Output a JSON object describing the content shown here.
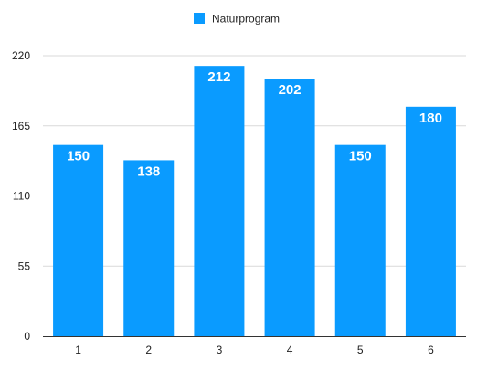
{
  "chart_data": {
    "type": "bar",
    "categories": [
      "1",
      "2",
      "3",
      "4",
      "5",
      "6"
    ],
    "series": [
      {
        "name": "Naturprogram",
        "values": [
          150,
          138,
          212,
          202,
          150,
          180
        ],
        "color": "#0a9bff"
      }
    ],
    "title": "",
    "xlabel": "",
    "ylabel": "",
    "ylim": [
      0,
      220
    ],
    "yticks": [
      0,
      55,
      110,
      165,
      220
    ],
    "grid": true,
    "legend_position": "top-center",
    "data_labels": true
  }
}
